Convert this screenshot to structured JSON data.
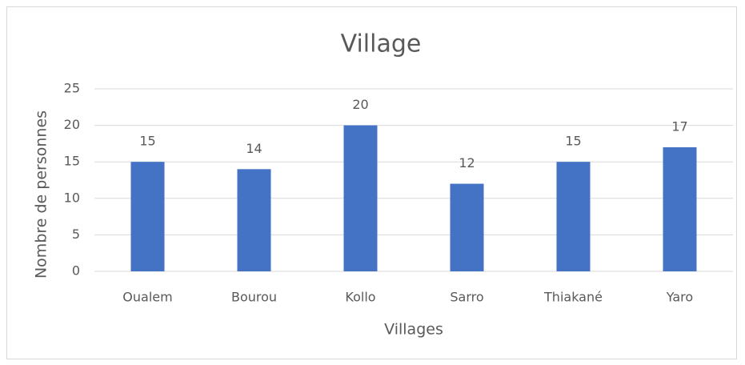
{
  "chart_data": {
    "type": "bar",
    "title": "Village",
    "x_label": "Villages",
    "y_label": "Nombre de personnes",
    "categories": [
      "Oualem",
      "Bourou",
      "Kollo",
      "Sarro",
      "Thiakané",
      "Yaro"
    ],
    "values": [
      15,
      14,
      20,
      12,
      15,
      17
    ],
    "color": "#4472c4",
    "ylim": [
      0,
      25
    ],
    "yticks": [
      0,
      5,
      10,
      15,
      20,
      25
    ],
    "grid": true
  }
}
